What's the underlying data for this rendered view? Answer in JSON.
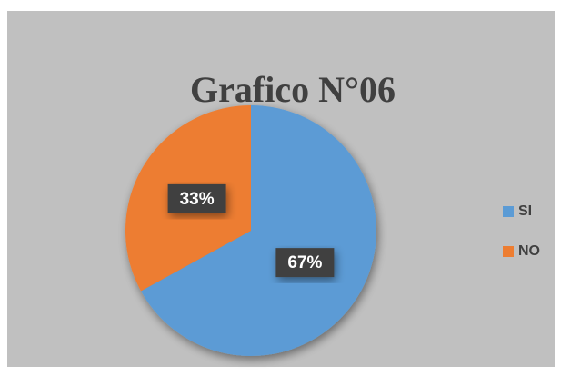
{
  "chart_data": {
    "type": "pie",
    "title": "Grafico N°06",
    "categories": [
      "SI",
      "NO"
    ],
    "values": [
      67,
      33
    ],
    "value_labels": [
      "67%",
      "33%"
    ],
    "colors": [
      "#5b9bd5",
      "#ed7d31"
    ],
    "legend": "right"
  }
}
